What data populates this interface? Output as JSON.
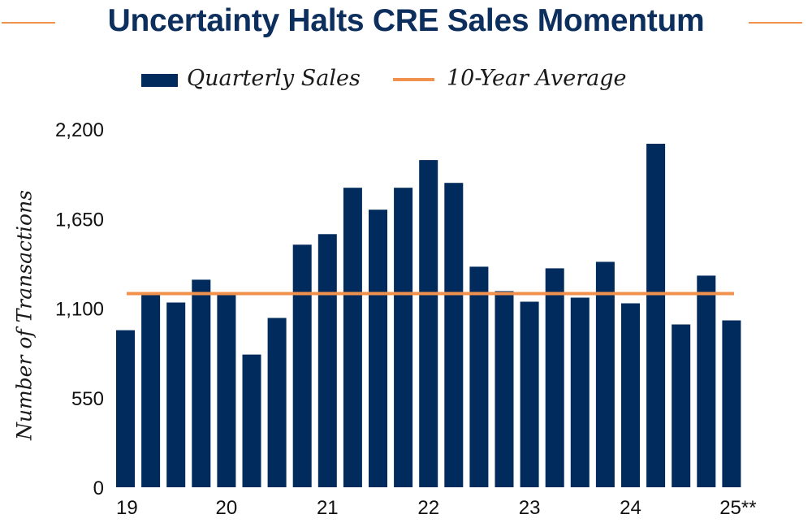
{
  "colors": {
    "bar": "#002b5c",
    "average_line": "#f0914d",
    "title": "#0d2f5e"
  },
  "chart_data": {
    "type": "bar",
    "title": "Uncertainty Halts CRE Sales Momentum",
    "ylabel": "Number of Transactions",
    "ylim": [
      0,
      2200
    ],
    "yticks": [
      "0",
      "550",
      "1,100",
      "1,650",
      "2,200"
    ],
    "ytick_values": [
      0,
      550,
      1100,
      1650,
      2200
    ],
    "year_labels": [
      "19",
      "20",
      "21",
      "22",
      "23",
      "24",
      "25**"
    ],
    "year_label_bar_index": [
      0,
      4,
      8,
      12,
      16,
      20,
      24
    ],
    "legend": [
      "Quarterly Sales",
      "10-Year Average"
    ],
    "series": [
      {
        "name": "Quarterly Sales",
        "values": [
          965,
          1180,
          1135,
          1275,
          1180,
          815,
          1040,
          1490,
          1555,
          1840,
          1705,
          1840,
          2010,
          1870,
          1355,
          1205,
          1140,
          1345,
          1165,
          1385,
          1130,
          2110,
          1000,
          1300,
          1025
        ]
      }
    ],
    "average": {
      "name": "10-Year Average",
      "value": 1190
    },
    "legend_position": "top",
    "grid": false
  }
}
